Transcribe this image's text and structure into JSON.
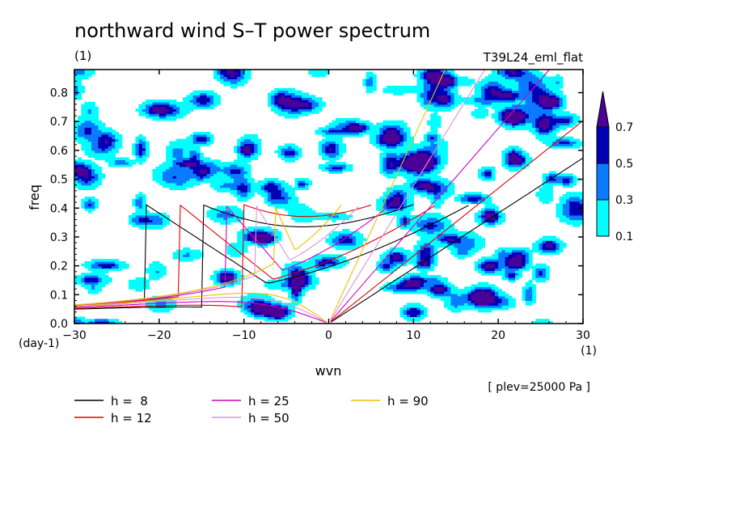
{
  "chart_data": {
    "type": "heatmap",
    "title": "northward wind S–T power spectrum",
    "subtitle_left": "(1)",
    "subtitle_right": "T39L24_eml_flat",
    "xlabel": "wvn",
    "ylabel": "freq",
    "x_unit": "(1)",
    "y_unit": "(day-1)",
    "note": "[ plev=25000 Pa ]",
    "xlim": [
      -30,
      30
    ],
    "ylim": [
      0,
      0.88
    ],
    "xticks": [
      "−30",
      "−20",
      "−10",
      "0",
      "10",
      "20",
      "30"
    ],
    "xtick_values": [
      -30,
      -20,
      -10,
      0,
      10,
      20,
      30
    ],
    "yticks": [
      "0.0",
      "0.1",
      "0.2",
      "0.3",
      "0.4",
      "0.5",
      "0.6",
      "0.7",
      "0.8"
    ],
    "ytick_values": [
      0,
      0.1,
      0.2,
      0.3,
      0.4,
      0.5,
      0.6,
      0.7,
      0.8
    ],
    "colorbar": {
      "levels": [
        "0.1",
        "0.3",
        "0.5",
        "0.7"
      ],
      "level_values": [
        0.1,
        0.3,
        0.5,
        0.7
      ],
      "colors": [
        "#00ffff",
        "#0a7bff",
        "#0000b4",
        "#4b0096"
      ]
    },
    "series": [
      {
        "name": "h =  8",
        "h": 8,
        "color": "#000000"
      },
      {
        "name": "h = 12",
        "h": 12,
        "color": "#e00000"
      },
      {
        "name": "h = 25",
        "h": 25,
        "color": "#d000c0"
      },
      {
        "name": "h = 50",
        "h": 50,
        "color": "#e090e0"
      },
      {
        "name": "h = 90",
        "h": 90,
        "color": "#f0c000"
      }
    ]
  }
}
